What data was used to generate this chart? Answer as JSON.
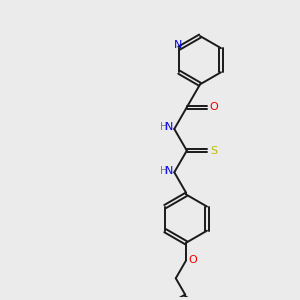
{
  "background_color": "#ebebeb",
  "bond_color": "#1a1a1a",
  "N_color": "#0000ee",
  "O_color": "#ee0000",
  "S_color": "#bbbb00",
  "H_color": "#777777",
  "figsize": [
    3.0,
    3.0
  ],
  "dpi": 100,
  "xlim": [
    0,
    10
  ],
  "ylim": [
    0,
    10
  ]
}
